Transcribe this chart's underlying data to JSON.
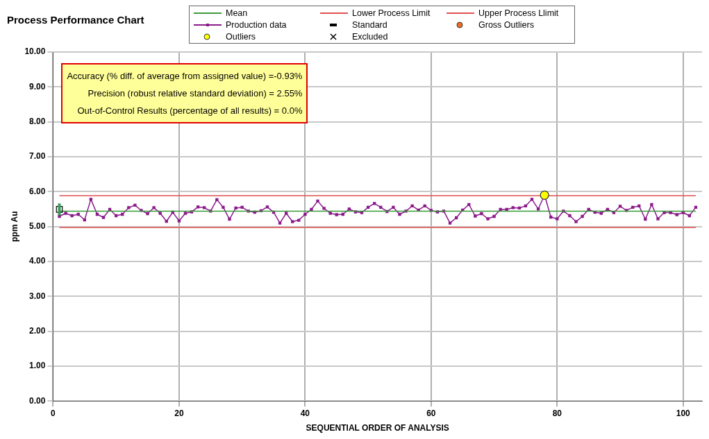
{
  "chart_data": {
    "type": "line",
    "title": "Process Performance Chart",
    "xlabel": "SEQUENTIAL ORDER OF ANALYSIS",
    "ylabel": "ppm Au",
    "legend": "top",
    "grid": true,
    "xlim": [
      0,
      103
    ],
    "xticks": [
      0,
      20,
      40,
      60,
      80,
      100
    ],
    "ylim": [
      0,
      10
    ],
    "yticks": [
      {
        "value": 0,
        "label": "0.00"
      },
      {
        "value": 1,
        "label": "1.00"
      },
      {
        "value": 2,
        "label": "2.00"
      },
      {
        "value": 3,
        "label": "3.00"
      },
      {
        "value": 4,
        "label": "4.00"
      },
      {
        "value": 5,
        "label": "5.00"
      },
      {
        "value": 6,
        "label": "6.00"
      },
      {
        "value": 7,
        "label": "7.00"
      },
      {
        "value": 8,
        "label": "8.00"
      },
      {
        "value": 9,
        "label": "9.00"
      },
      {
        "value": 10,
        "label": "10.00"
      }
    ],
    "annotations": [
      "Accuracy (% diff. of average from assigned value) =-0.93%",
      "Precision (robust relative standard deviation) = 2.55%",
      "Out-of-Control Results (percentage of all results) = 0.0%"
    ],
    "x": [
      1,
      2,
      3,
      4,
      5,
      6,
      7,
      8,
      9,
      10,
      11,
      12,
      13,
      14,
      15,
      16,
      17,
      18,
      19,
      20,
      21,
      22,
      23,
      24,
      25,
      26,
      27,
      28,
      29,
      30,
      31,
      32,
      33,
      34,
      35,
      36,
      37,
      38,
      39,
      40,
      41,
      42,
      43,
      44,
      45,
      46,
      47,
      48,
      49,
      50,
      51,
      52,
      53,
      54,
      55,
      56,
      57,
      58,
      59,
      60,
      61,
      62,
      63,
      64,
      65,
      66,
      67,
      68,
      69,
      70,
      71,
      72,
      73,
      74,
      75,
      76,
      77,
      78,
      79,
      80,
      81,
      82,
      83,
      84,
      85,
      86,
      87,
      88,
      89,
      90,
      91,
      92,
      93,
      94,
      95,
      96,
      97,
      98,
      99,
      100,
      101,
      102
    ],
    "series": [
      {
        "name": "Mean",
        "marker": "none",
        "color": "#3a9a3a",
        "x": [
          1,
          102
        ],
        "values": [
          5.44,
          5.44
        ]
      },
      {
        "name": "Lower Process Limit",
        "marker": "none",
        "color": "#e05050",
        "x": [
          1,
          102
        ],
        "values": [
          4.97,
          4.97
        ]
      },
      {
        "name": "Upper Process Llimit",
        "marker": "none",
        "color": "#e05050",
        "x": [
          1,
          102
        ],
        "values": [
          5.88,
          5.88
        ]
      },
      {
        "name": "Production data",
        "marker": "square",
        "color": "#8b1a8b",
        "values": [
          5.29,
          5.38,
          5.31,
          5.35,
          5.19,
          5.78,
          5.35,
          5.26,
          5.49,
          5.31,
          5.35,
          5.54,
          5.61,
          5.46,
          5.37,
          5.54,
          5.38,
          5.15,
          5.41,
          5.16,
          5.38,
          5.42,
          5.56,
          5.54,
          5.44,
          5.77,
          5.55,
          5.21,
          5.53,
          5.55,
          5.44,
          5.41,
          5.45,
          5.56,
          5.41,
          5.1,
          5.38,
          5.14,
          5.18,
          5.35,
          5.49,
          5.73,
          5.52,
          5.38,
          5.34,
          5.35,
          5.5,
          5.42,
          5.4,
          5.55,
          5.66,
          5.55,
          5.43,
          5.55,
          5.35,
          5.44,
          5.59,
          5.47,
          5.59,
          5.46,
          5.42,
          5.44,
          5.1,
          5.25,
          5.47,
          5.63,
          5.3,
          5.37,
          5.22,
          5.29,
          5.49,
          5.49,
          5.54,
          5.53,
          5.59,
          5.78,
          5.5,
          5.9,
          5.27,
          5.22,
          5.44,
          5.31,
          5.14,
          5.29,
          5.49,
          5.41,
          5.38,
          5.49,
          5.4,
          5.58,
          5.46,
          5.55,
          5.59,
          5.21,
          5.63,
          5.22,
          5.4,
          5.4,
          5.34,
          5.4,
          5.31,
          5.55
        ]
      },
      {
        "name": "Standard",
        "type": "scatter",
        "marker": "square",
        "color": "#000000",
        "x": [
          1
        ],
        "values": [
          5.49
        ],
        "errors": [
          [
            5.32,
            5.66
          ]
        ]
      },
      {
        "name": "Gross Outliers",
        "type": "scatter",
        "marker": "circle",
        "color": "#f07020",
        "values": [
          null,
          null,
          null,
          null,
          null,
          null,
          null,
          null,
          null,
          null,
          null,
          null,
          null,
          null,
          null,
          null,
          null,
          null,
          null,
          null,
          null,
          null,
          null,
          null,
          null,
          null,
          null,
          null,
          null,
          null,
          null,
          null,
          null,
          null,
          null,
          null,
          null,
          null,
          null,
          null,
          null,
          null,
          null,
          null,
          null,
          null,
          null,
          null,
          null,
          null,
          null,
          null,
          null,
          null,
          null,
          null,
          null,
          null,
          null,
          null,
          null,
          null,
          null,
          null,
          null,
          null,
          null,
          null,
          null,
          null,
          null,
          null,
          null,
          null,
          null,
          null,
          null,
          null,
          null,
          null,
          null,
          null,
          null,
          null,
          null,
          null,
          null,
          null,
          null,
          null,
          null,
          null,
          null,
          null,
          null,
          null,
          null,
          null,
          null,
          null,
          null,
          null
        ]
      },
      {
        "name": "Outliers",
        "type": "scatter",
        "marker": "circle",
        "color": "#ffff00",
        "x": [
          78
        ],
        "values": [
          5.9
        ]
      },
      {
        "name": "Excluded",
        "type": "scatter",
        "marker": "cross",
        "color": "#000000",
        "values": [
          null,
          null,
          null,
          null,
          null,
          null,
          null,
          null,
          null,
          null,
          null,
          null,
          null,
          null,
          null,
          null,
          null,
          null,
          null,
          null,
          null,
          null,
          null,
          null,
          null,
          null,
          null,
          null,
          null,
          null,
          null,
          null,
          null,
          null,
          null,
          null,
          null,
          null,
          null,
          null,
          null,
          null,
          null,
          null,
          null,
          null,
          null,
          null,
          null,
          null,
          null,
          null,
          null,
          null,
          null,
          null,
          null,
          null,
          null,
          null,
          null,
          null,
          null,
          null,
          null,
          null,
          null,
          null,
          null,
          null,
          null,
          null,
          null,
          null,
          null,
          null,
          null,
          null,
          null,
          null,
          null,
          null,
          null,
          null,
          null,
          null,
          null,
          null,
          null,
          null,
          null,
          null,
          null,
          null,
          null,
          null,
          null,
          null,
          null,
          null,
          null,
          null
        ]
      }
    ]
  }
}
